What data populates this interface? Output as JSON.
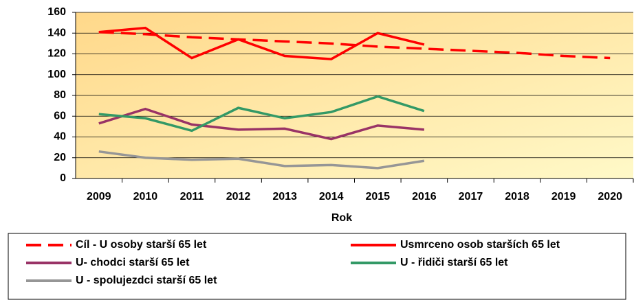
{
  "chart_data": {
    "type": "line",
    "x_label": "Rok",
    "categories": [
      "2009",
      "2010",
      "2011",
      "2012",
      "2013",
      "2014",
      "2015",
      "2016",
      "2017",
      "2018",
      "2019",
      "2020"
    ],
    "series": [
      {
        "name": "Cíl - U osoby starší 65 let",
        "color": "#ff0000",
        "dashed": true,
        "values": [
          141,
          139,
          136,
          134,
          132,
          130,
          127,
          125,
          123,
          121,
          118,
          116
        ]
      },
      {
        "name": "Usmrceno osob starších 65 let",
        "color": "#ff0000",
        "values": [
          141,
          145,
          116,
          134,
          118,
          115,
          140,
          129,
          null,
          null,
          null,
          null
        ]
      },
      {
        "name": "U- chodci starší 65 let",
        "color": "#993366",
        "values": [
          53,
          67,
          52,
          47,
          48,
          38,
          51,
          47,
          null,
          null,
          null,
          null
        ]
      },
      {
        "name": "U - řidiči starší 65 let",
        "color": "#339966",
        "values": [
          62,
          58,
          46,
          68,
          58,
          64,
          79,
          65,
          null,
          null,
          null,
          null
        ]
      },
      {
        "name": "U - spolujezdci starší 65 let",
        "color": "#969696",
        "values": [
          26,
          20,
          18,
          19,
          12,
          13,
          10,
          17,
          null,
          null,
          null,
          null
        ]
      }
    ],
    "ylim": [
      0,
      160
    ],
    "yticks": [
      0,
      20,
      40,
      60,
      80,
      100,
      120,
      140,
      160
    ],
    "grid": true,
    "legend_position": "bottom"
  }
}
